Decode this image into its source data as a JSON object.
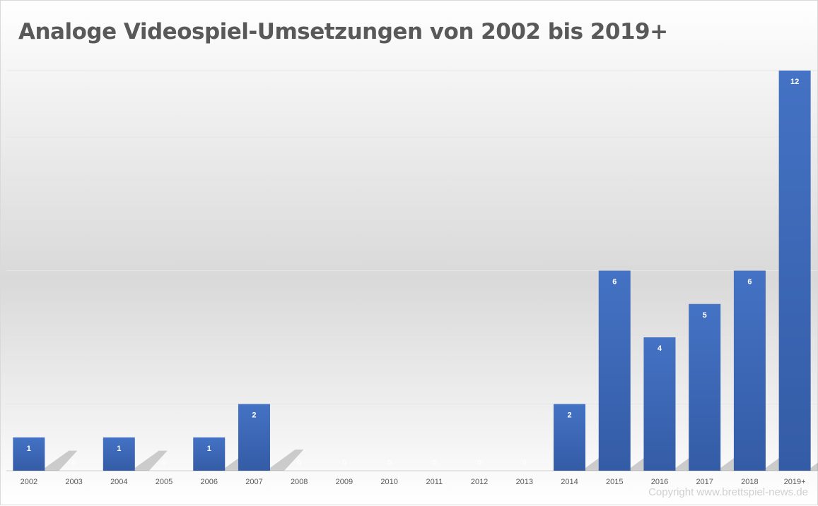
{
  "chart_data": {
    "type": "bar",
    "title": "Analoge Videospiel-Umsetzungen von 2002 bis 2019+",
    "categories": [
      "2002",
      "2003",
      "2004",
      "2005",
      "2006",
      "2007",
      "2008",
      "2009",
      "2010",
      "2011",
      "2012",
      "2013",
      "2014",
      "2015",
      "2016",
      "2017",
      "2018",
      "2019+"
    ],
    "values": [
      1,
      0,
      1,
      0,
      1,
      2,
      0,
      0,
      0,
      0,
      0,
      0,
      2,
      6,
      4,
      5,
      6,
      12
    ],
    "ylim": [
      0,
      12
    ],
    "grid": true,
    "data_labels": true,
    "bar_color": "#3a64b0",
    "xlabel": "",
    "ylabel": ""
  },
  "copyright": "Copyright www.brettspiel-news.de"
}
